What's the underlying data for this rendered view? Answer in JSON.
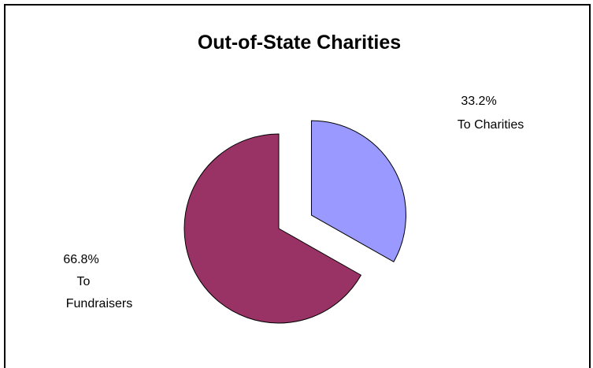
{
  "chart_data": {
    "type": "pie",
    "title": "Out-of-State Charities",
    "slices": [
      {
        "label_lines": [
          "33.2%",
          "To Charities"
        ],
        "value": 33.2,
        "color": "#9999ff",
        "exploded": true
      },
      {
        "label_lines": [
          "66.8%",
          "To",
          "Fundraisers"
        ],
        "value": 66.8,
        "color": "#993366",
        "exploded": false
      }
    ],
    "legend": "none"
  }
}
